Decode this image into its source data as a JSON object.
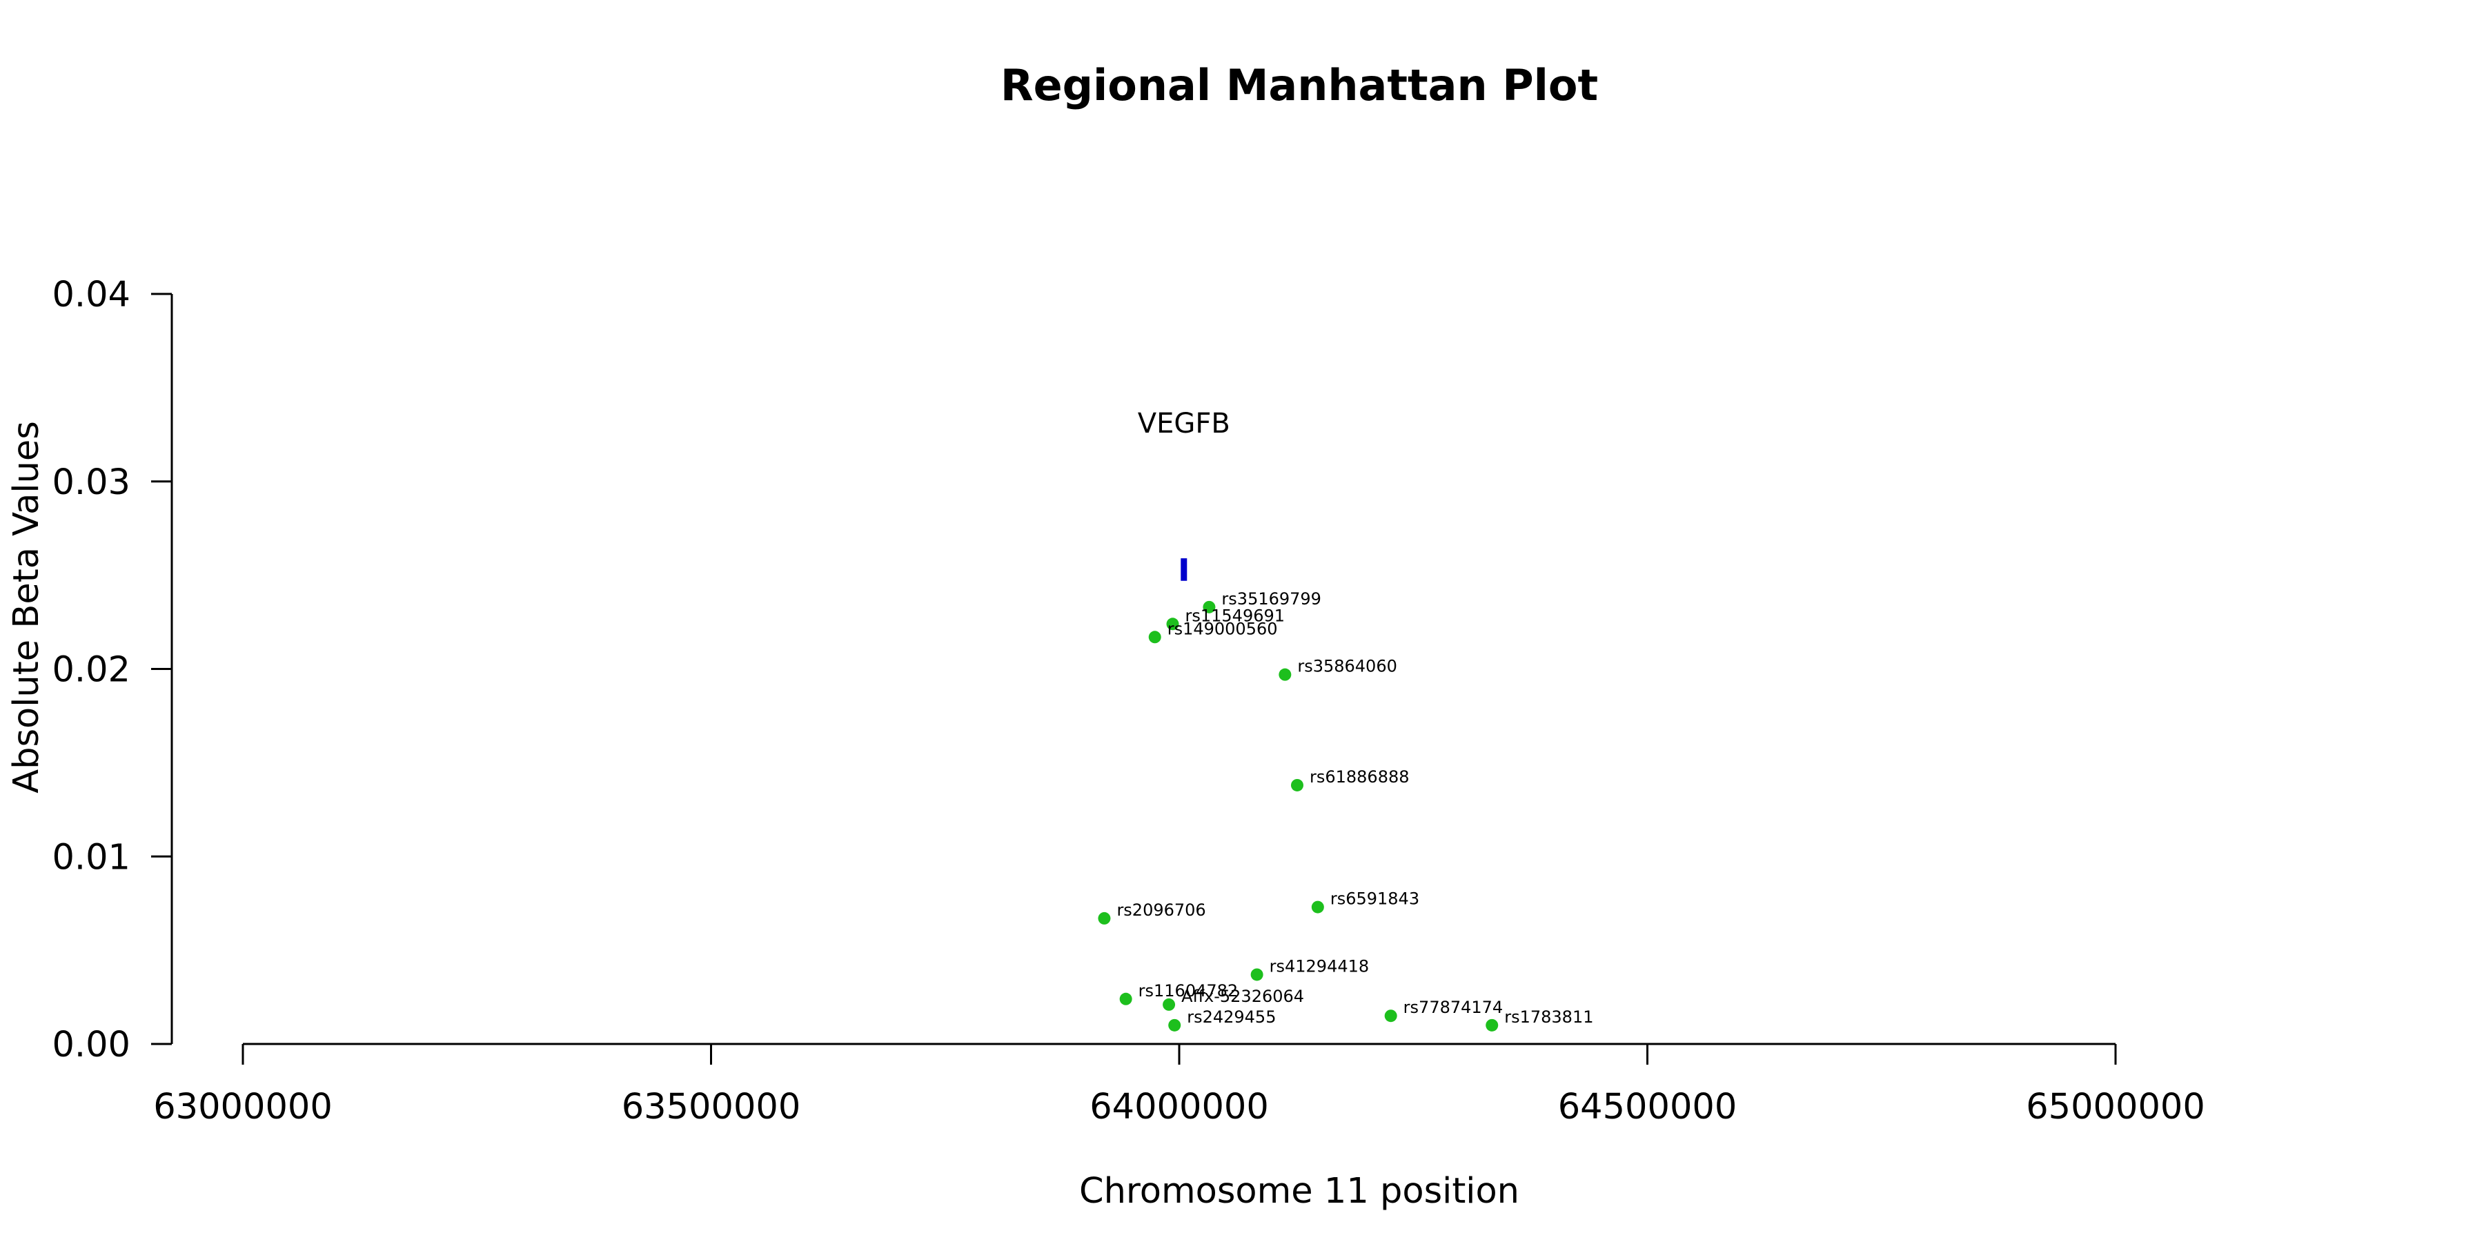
{
  "chart_data": {
    "type": "scatter",
    "title": "Regional Manhattan Plot",
    "xlabel": "Chromosome 11 position",
    "ylabel": "Absolute Beta Values",
    "xlim": [
      63000000,
      65000000
    ],
    "ylim": [
      0,
      0.04
    ],
    "x_ticks": [
      63000000,
      63500000,
      64000000,
      64500000,
      65000000
    ],
    "x_tick_labels": [
      "63000000",
      "63500000",
      "64000000",
      "64500000",
      "65000000"
    ],
    "y_ticks": [
      0,
      0.01,
      0.02,
      0.03,
      0.04
    ],
    "y_tick_labels": [
      "0.00",
      "0.01",
      "0.02",
      "0.03",
      "0.04"
    ],
    "grid": false,
    "point_color": "#1dbf1d",
    "gene_color": "#0000cc",
    "gene": {
      "label": "VEGFB",
      "x": 64005000,
      "y_range": [
        0.0247,
        0.0259
      ],
      "label_y": 0.0326
    },
    "points": [
      {
        "label": "rs35169799",
        "x": 64032000,
        "y": 0.0233
      },
      {
        "label": "rs11549691",
        "x": 63993000,
        "y": 0.0224
      },
      {
        "label": "rs149000560",
        "x": 63974000,
        "y": 0.0217
      },
      {
        "label": "rs35864060",
        "x": 64113000,
        "y": 0.0197
      },
      {
        "label": "rs61886888",
        "x": 64126000,
        "y": 0.0138
      },
      {
        "label": "rs6591843",
        "x": 64148000,
        "y": 0.0073
      },
      {
        "label": "rs2096706",
        "x": 63920000,
        "y": 0.0067
      },
      {
        "label": "rs41294418",
        "x": 64083000,
        "y": 0.0037
      },
      {
        "label": "rs11604782",
        "x": 63943000,
        "y": 0.0024
      },
      {
        "label": "Affx-52326064",
        "x": 63989000,
        "y": 0.0021
      },
      {
        "label": "rs77874174",
        "x": 64226000,
        "y": 0.0015
      },
      {
        "label": "rs2429455",
        "x": 63995000,
        "y": 0.001
      },
      {
        "label": "rs1783811",
        "x": 64334000,
        "y": 0.001
      }
    ]
  }
}
